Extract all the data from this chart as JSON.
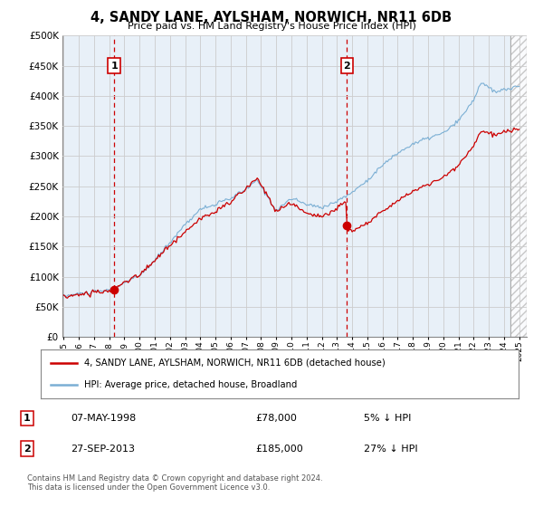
{
  "title": "4, SANDY LANE, AYLSHAM, NORWICH, NR11 6DB",
  "subtitle": "Price paid vs. HM Land Registry's House Price Index (HPI)",
  "legend_line1": "4, SANDY LANE, AYLSHAM, NORWICH, NR11 6DB (detached house)",
  "legend_line2": "HPI: Average price, detached house, Broadland",
  "sale1_date": "07-MAY-1998",
  "sale1_price": 78000,
  "sale1_label": "1",
  "sale1_hpi_pct": "5% ↓ HPI",
  "sale2_date": "27-SEP-2013",
  "sale2_price": 185000,
  "sale2_label": "2",
  "sale2_hpi_pct": "27% ↓ HPI",
  "footer": "Contains HM Land Registry data © Crown copyright and database right 2024.\nThis data is licensed under the Open Government Licence v3.0.",
  "hpi_color": "#7bafd4",
  "price_color": "#cc0000",
  "bg_color": "#e8f0f8",
  "grid_color": "#cccccc",
  "dashed_color": "#cc0000",
  "ylim": [
    0,
    500000
  ],
  "yticks": [
    0,
    50000,
    100000,
    150000,
    200000,
    250000,
    300000,
    350000,
    400000,
    450000,
    500000
  ],
  "year_start": 1995,
  "year_end": 2025
}
